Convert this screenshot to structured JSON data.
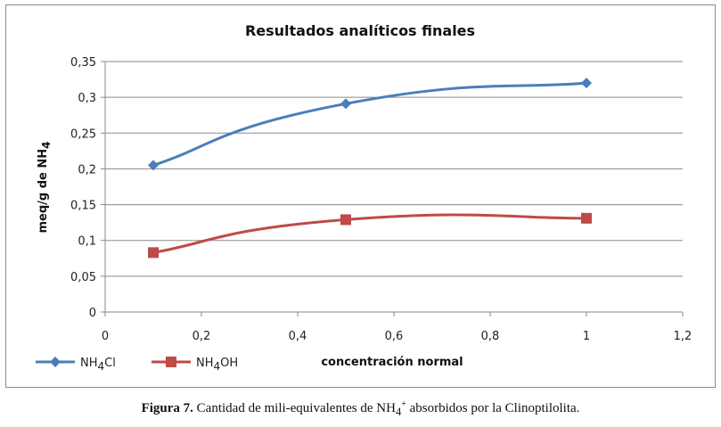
{
  "chart_data": {
    "type": "line",
    "title": "Resultados analíticos finales",
    "xlabel": "concentración  normal",
    "ylabel": "meq/g de NH",
    "ylabel_sub": "4",
    "xlim": [
      0,
      1.2
    ],
    "ylim": [
      0,
      0.35
    ],
    "x_ticks": [
      "0",
      "0,2",
      "0,4",
      "0,6",
      "0,8",
      "1",
      "1,2"
    ],
    "y_ticks": [
      "0",
      "0,05",
      "0,1",
      "0,15",
      "0,2",
      "0,25",
      "0,3",
      "0,35"
    ],
    "grid": "horizontal",
    "legend_position": "bottom-left",
    "series": [
      {
        "name": "NH4Cl",
        "legend_main": "NH",
        "legend_sub": "4",
        "legend_rest": "Cl",
        "marker": "diamond",
        "color": "#4a7ebb",
        "x": [
          0.1,
          0.5,
          1
        ],
        "y": [
          0.205,
          0.291,
          0.32
        ]
      },
      {
        "name": "NH4OH",
        "legend_main": "NH",
        "legend_sub": "4",
        "legend_rest": "OH",
        "marker": "square",
        "color": "#be4b48",
        "x": [
          0.1,
          0.5,
          1
        ],
        "y": [
          0.083,
          0.129,
          0.131
        ]
      }
    ]
  },
  "caption": {
    "label": "Figura 7.",
    "text": " Cantidad de mili-equivalentes de NH",
    "sub": "4",
    "sup": "+",
    "text_after": " absorbidos por la Clinoptilolita."
  }
}
